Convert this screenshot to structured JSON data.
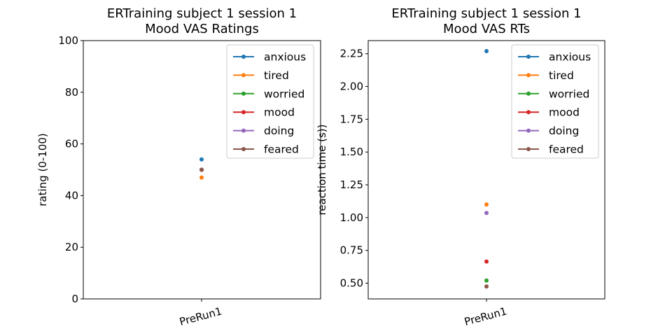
{
  "chart_data": [
    {
      "type": "scatter",
      "title": "ERTraining subject 1 session 1",
      "subtitle": "Mood VAS Ratings",
      "xlabel": "",
      "ylabel": "rating (0-100)",
      "categories": [
        "PreRun1"
      ],
      "ylim": [
        0,
        100
      ],
      "yticks": [
        0,
        20,
        40,
        60,
        80,
        100
      ],
      "ytick_labels": [
        "0",
        "20",
        "40",
        "60",
        "80",
        "100"
      ],
      "legend_placement": "top-right",
      "grid": false,
      "series": [
        {
          "name": "anxious",
          "color": "#1f77b4",
          "values": [
            54
          ]
        },
        {
          "name": "tired",
          "color": "#ff7f0e",
          "values": [
            47
          ]
        },
        {
          "name": "worried",
          "color": "#2ca02c",
          "values": [
            50
          ]
        },
        {
          "name": "mood",
          "color": "#d62728",
          "values": [
            50
          ]
        },
        {
          "name": "doing",
          "color": "#9467bd",
          "values": [
            50
          ]
        },
        {
          "name": "feared",
          "color": "#8c564b",
          "values": [
            50
          ]
        }
      ]
    },
    {
      "type": "scatter",
      "title": "ERTraining subject 1 session 1",
      "subtitle": "Mood VAS RTs",
      "xlabel": "",
      "ylabel": "reaction time (s))",
      "categories": [
        "PreRun1"
      ],
      "ylim": [
        0.38,
        2.35
      ],
      "yticks": [
        0.5,
        0.75,
        1.0,
        1.25,
        1.5,
        1.75,
        2.0,
        2.25
      ],
      "ytick_labels": [
        "0.50",
        "0.75",
        "1.00",
        "1.25",
        "1.50",
        "1.75",
        "2.00",
        "2.25"
      ],
      "legend_placement": "top-right",
      "grid": false,
      "series": [
        {
          "name": "anxious",
          "color": "#1f77b4",
          "values": [
            2.27
          ]
        },
        {
          "name": "tired",
          "color": "#ff7f0e",
          "values": [
            1.1
          ]
        },
        {
          "name": "worried",
          "color": "#2ca02c",
          "values": [
            0.52
          ]
        },
        {
          "name": "mood",
          "color": "#d62728",
          "values": [
            0.665
          ]
        },
        {
          "name": "doing",
          "color": "#9467bd",
          "values": [
            1.035
          ]
        },
        {
          "name": "feared",
          "color": "#8c564b",
          "values": [
            0.475
          ]
        }
      ]
    }
  ]
}
